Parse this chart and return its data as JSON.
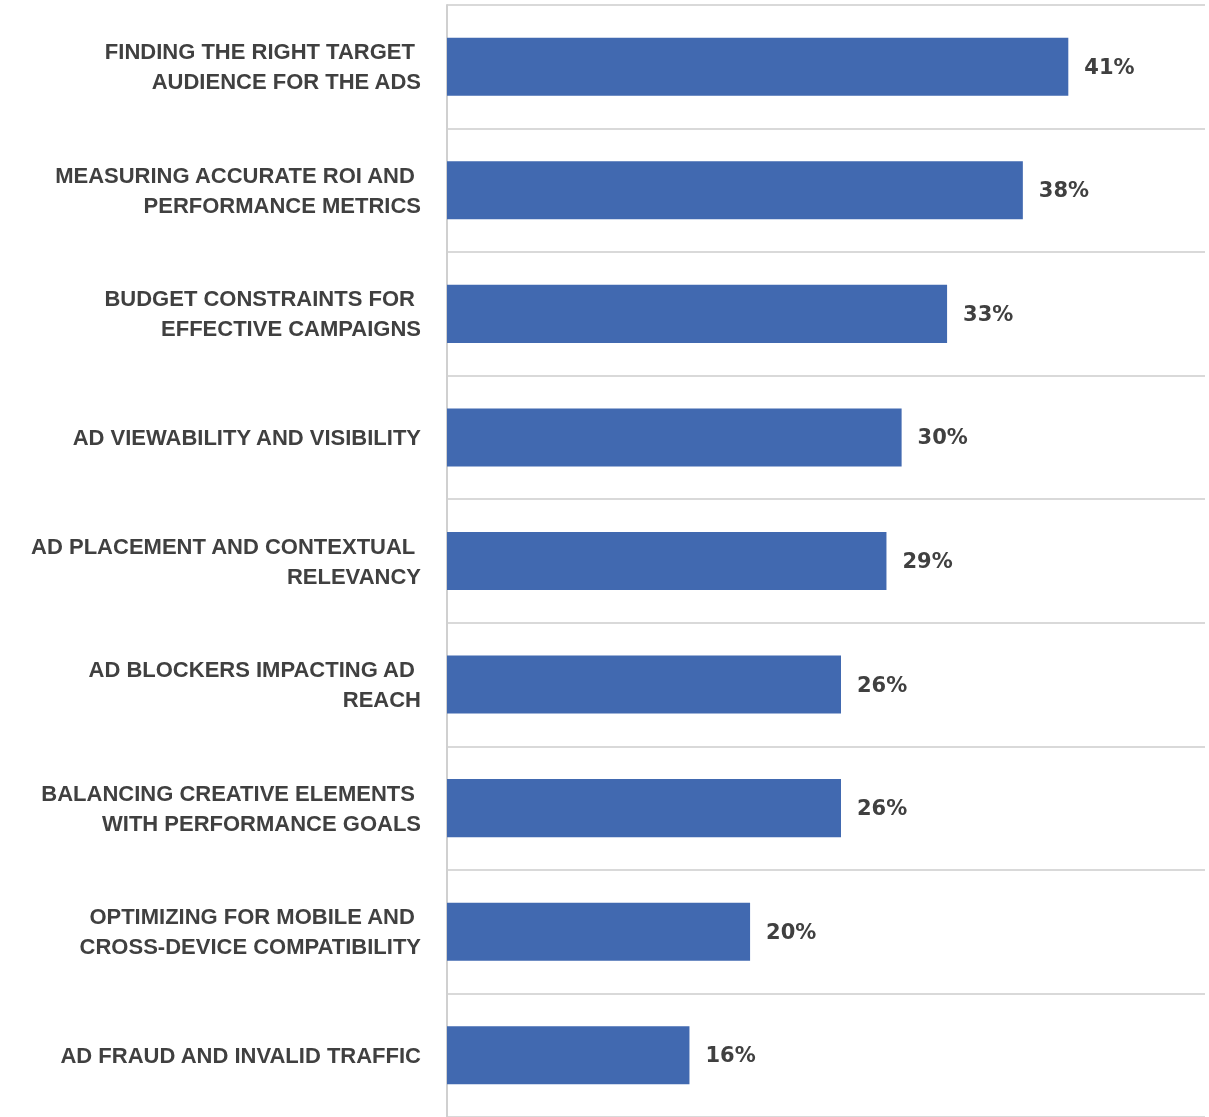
{
  "chart_data": {
    "type": "bar",
    "orientation": "horizontal",
    "categories": [
      "FINDING THE RIGHT TARGET AUDIENCE FOR THE ADS",
      "MEASURING ACCURATE ROI AND PERFORMANCE METRICS",
      "BUDGET CONSTRAINTS FOR EFFECTIVE CAMPAIGNS",
      "AD VIEWABILITY AND VISIBILITY",
      "AD PLACEMENT AND CONTEXTUAL RELEVANCY",
      "AD BLOCKERS IMPACTING AD REACH",
      "BALANCING CREATIVE ELEMENTS WITH PERFORMANCE GOALS",
      "OPTIMIZING FOR MOBILE AND CROSS-DEVICE COMPATIBILITY",
      "AD FRAUD AND INVALID TRAFFIC"
    ],
    "values": [
      41,
      38,
      33,
      30,
      29,
      26,
      26,
      20,
      16
    ],
    "value_labels": [
      "41%",
      "38%",
      "33%",
      "30%",
      "29%",
      "26%",
      "26%",
      "20%",
      "16%"
    ],
    "color": "#4169b0",
    "grid": "y"
  }
}
